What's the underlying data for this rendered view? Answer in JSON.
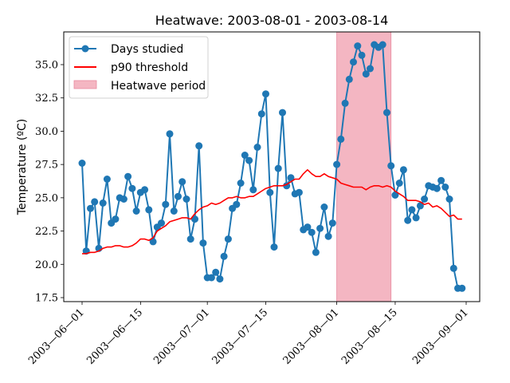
{
  "chart_data": {
    "type": "line",
    "title": "Heatwave: 2003-08-01 - 2003-08-14",
    "xlabel": "",
    "ylabel": "Temperature (ºC)",
    "x_start_date": "2003-06-01",
    "x_unit": "day",
    "xlim_days": [
      -4.5,
      95.5
    ],
    "ylim": [
      17.3,
      37.5
    ],
    "x_ticks": [
      {
        "day": 0,
        "label": "2003—06—01"
      },
      {
        "day": 14,
        "label": "2003—06—15"
      },
      {
        "day": 30,
        "label": "2003—07—01"
      },
      {
        "day": 44,
        "label": "2003—07—15"
      },
      {
        "day": 61,
        "label": "2003—08—01"
      },
      {
        "day": 75,
        "label": "2003—08—15"
      },
      {
        "day": 92,
        "label": "2003—09—01"
      }
    ],
    "y_ticks": [
      {
        "value": 17.5,
        "label": "17.5"
      },
      {
        "value": 20.0,
        "label": "20.0"
      },
      {
        "value": 22.5,
        "label": "22.5"
      },
      {
        "value": 25.0,
        "label": "25.0"
      },
      {
        "value": 27.5,
        "label": "27.5"
      },
      {
        "value": 30.0,
        "label": "30.0"
      },
      {
        "value": 32.5,
        "label": "32.5"
      },
      {
        "value": 35.0,
        "label": "35.0"
      }
    ],
    "grid": false,
    "legend_position": "top-left",
    "heatwave_period": {
      "name": "Heatwave period",
      "start_day": 61,
      "end_day": 74,
      "start": "2003-08-01",
      "end": "2003-08-14",
      "color": "#f4b6c2",
      "edge": "#e88aa0"
    },
    "series": [
      {
        "name": "Days studied",
        "color": "#1f77b4",
        "marker": "circle",
        "values": [
          27.6,
          21.0,
          24.2,
          24.7,
          21.2,
          24.6,
          26.4,
          23.1,
          23.4,
          25.0,
          24.9,
          26.6,
          25.7,
          24.0,
          25.4,
          25.6,
          24.1,
          21.7,
          22.8,
          23.1,
          24.5,
          29.8,
          24.0,
          25.1,
          26.2,
          24.9,
          21.9,
          23.4,
          28.9,
          21.6,
          19.0,
          19.0,
          19.4,
          18.9,
          20.6,
          21.9,
          24.2,
          24.5,
          26.1,
          28.2,
          27.8,
          25.6,
          28.8,
          31.3,
          32.8,
          25.4,
          21.3,
          27.2,
          31.4,
          25.9,
          26.5,
          25.3,
          25.4,
          22.6,
          22.8,
          22.4,
          20.9,
          22.7,
          24.3,
          22.1,
          23.1,
          27.5,
          29.4,
          32.1,
          33.9,
          35.2,
          36.4,
          35.7,
          34.3,
          34.7,
          36.5,
          36.3,
          36.5,
          31.4,
          27.4,
          25.2,
          26.1,
          27.1,
          23.3,
          24.1,
          23.5,
          24.4,
          24.9,
          25.9,
          25.8,
          25.7,
          26.3,
          25.8,
          24.9,
          19.7,
          18.2,
          18.2
        ]
      },
      {
        "name": "p90 threshold",
        "color": "#ff0000",
        "marker": "none",
        "values": [
          20.8,
          20.8,
          20.9,
          20.9,
          21.0,
          21.2,
          21.3,
          21.3,
          21.4,
          21.4,
          21.3,
          21.3,
          21.4,
          21.6,
          21.9,
          21.9,
          21.8,
          22.0,
          22.5,
          22.7,
          22.9,
          23.2,
          23.3,
          23.4,
          23.5,
          23.5,
          23.4,
          23.8,
          24.1,
          24.3,
          24.4,
          24.6,
          24.5,
          24.6,
          24.8,
          25.0,
          25.0,
          25.1,
          25.0,
          25.0,
          25.1,
          25.1,
          25.3,
          25.5,
          25.7,
          25.8,
          25.9,
          25.9,
          25.9,
          26.0,
          26.2,
          26.4,
          26.4,
          26.8,
          27.1,
          26.8,
          26.6,
          26.6,
          26.8,
          26.6,
          26.5,
          26.4,
          26.1,
          26.0,
          25.9,
          25.8,
          25.8,
          25.8,
          25.6,
          25.8,
          25.9,
          25.9,
          25.8,
          25.9,
          25.8,
          25.5,
          25.3,
          25.1,
          24.8,
          24.8,
          24.8,
          24.7,
          24.5,
          24.6,
          24.3,
          24.4,
          24.2,
          23.9,
          23.6,
          23.7,
          23.4,
          23.4
        ]
      }
    ]
  }
}
